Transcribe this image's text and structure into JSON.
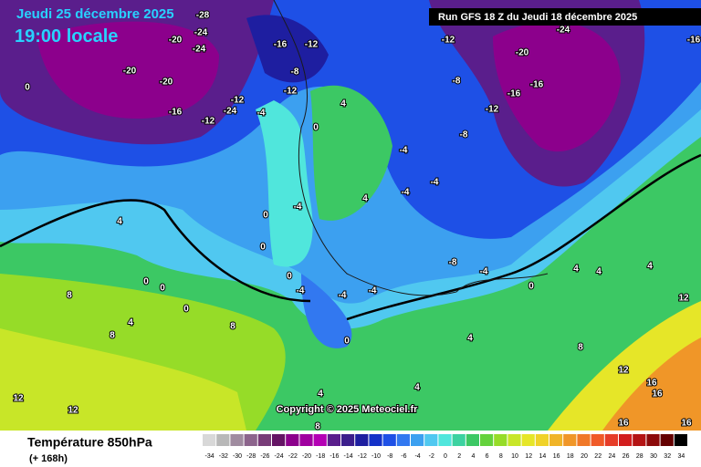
{
  "header": {
    "date": "Jeudi 25 décembre 2025",
    "time": "19:00 locale",
    "run": "Run GFS 18 Z du Jeudi 18 décembre 2025"
  },
  "map": {
    "labels": [
      "0",
      "-20",
      "-20",
      "-16",
      "-12",
      "-12",
      "-24",
      "-28",
      "-24",
      "-20",
      "-24",
      "-16",
      "-12",
      "-8",
      "-12",
      "-4",
      "4",
      "0",
      "0",
      "-4",
      "4",
      "0",
      "0",
      "0",
      "0",
      "8",
      "4",
      "8",
      "8",
      "0",
      "-4",
      "-4",
      "-4",
      "0",
      "-8",
      "-4",
      "0",
      "4",
      "-12",
      "-8",
      "-12",
      "-8",
      "-20",
      "-16",
      "-16",
      "-24",
      "-16",
      "-4",
      "-4",
      "-4",
      "4",
      "12",
      "12",
      "16",
      "16",
      "16",
      "16",
      "4",
      "4",
      "8",
      "8",
      "4",
      "12",
      "12",
      "4",
      "4"
    ]
  },
  "copyright": "Copyright © 2025 Meteociel.fr",
  "footer": {
    "title": "Température 850hPa",
    "lead": "(+ 168h)",
    "scale": [
      {
        "value": -34,
        "color": "#d8d8d8"
      },
      {
        "value": -32,
        "color": "#b8b8b8"
      },
      {
        "value": -30,
        "color": "#a08ca0"
      },
      {
        "value": -28,
        "color": "#8c648c"
      },
      {
        "value": -26,
        "color": "#783c78"
      },
      {
        "value": -24,
        "color": "#641464"
      },
      {
        "value": -22,
        "color": "#8c008c"
      },
      {
        "value": -20,
        "color": "#a000a0"
      },
      {
        "value": -18,
        "color": "#b400b4"
      },
      {
        "value": -16,
        "color": "#5a1e8c"
      },
      {
        "value": -14,
        "color": "#3c1e8c"
      },
      {
        "value": -12,
        "color": "#1e1ea0"
      },
      {
        "value": -10,
        "color": "#1432c8"
      },
      {
        "value": -8,
        "color": "#1e50e6"
      },
      {
        "value": -6,
        "color": "#3278f0"
      },
      {
        "value": -4,
        "color": "#3ca0f0"
      },
      {
        "value": -2,
        "color": "#50c8f0"
      },
      {
        "value": 0,
        "color": "#50e6dc"
      },
      {
        "value": 2,
        "color": "#3cd2a0"
      },
      {
        "value": 4,
        "color": "#3cc864"
      },
      {
        "value": 6,
        "color": "#64d23c"
      },
      {
        "value": 8,
        "color": "#96dc28"
      },
      {
        "value": 10,
        "color": "#c8e628"
      },
      {
        "value": 12,
        "color": "#e6e628"
      },
      {
        "value": 14,
        "color": "#f0d228"
      },
      {
        "value": 16,
        "color": "#f0b428"
      },
      {
        "value": 18,
        "color": "#f09628"
      },
      {
        "value": 20,
        "color": "#f07828"
      },
      {
        "value": 22,
        "color": "#f05a28"
      },
      {
        "value": 24,
        "color": "#e63c28"
      },
      {
        "value": 26,
        "color": "#d21e1e"
      },
      {
        "value": 28,
        "color": "#b41414"
      },
      {
        "value": 30,
        "color": "#8c0a0a"
      },
      {
        "value": 32,
        "color": "#640000"
      },
      {
        "value": 34,
        "color": "#000000"
      }
    ]
  }
}
